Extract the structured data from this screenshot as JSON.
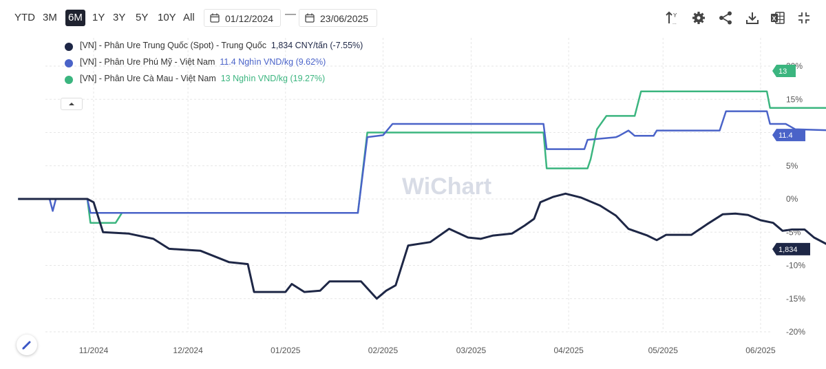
{
  "toolbar": {
    "ranges": [
      "YTD",
      "3M",
      "6M",
      "1Y",
      "3Y",
      "5Y",
      "10Y",
      "All"
    ],
    "active_range": "6M",
    "date_from": "01/12/2024",
    "date_to": "23/06/2025",
    "separator": "—",
    "icons": [
      "sort-icon",
      "gear-icon",
      "share-icon",
      "download-icon",
      "excel-icon",
      "collapse-icon"
    ]
  },
  "watermark": "WiChart",
  "colors": {
    "series1": "#1e2746",
    "series2": "#4a63c8",
    "series3": "#3bb57f",
    "grid": "#e6e6e6"
  },
  "chart_data": {
    "type": "line",
    "y_unit": "%",
    "ylim": [
      -20,
      20
    ],
    "y_ticks": [
      "20%",
      "15%",
      "10%",
      "5%",
      "0%",
      "-5%",
      "-10%",
      "-15%",
      "-20%"
    ],
    "x_ticks": [
      "11/2024",
      "12/2024",
      "01/2025",
      "02/2025",
      "03/2025",
      "04/2025",
      "05/2025",
      "06/2025"
    ],
    "series": [
      {
        "name": "[VN] - Phân Ure Trung Quốc (Spot) - Trung Quốc",
        "value_label": "1,834 CNY/tấn (-7.55%)",
        "end_badge": "1,834",
        "color": "#1e2746",
        "points": [
          [
            "2024-10-08",
            0
          ],
          [
            "2024-10-30",
            0
          ],
          [
            "2024-11-01",
            -0.5
          ],
          [
            "2024-11-04",
            -5
          ],
          [
            "2024-11-12",
            -5.2
          ],
          [
            "2024-11-20",
            -6
          ],
          [
            "2024-11-25",
            -7.5
          ],
          [
            "2024-12-05",
            -7.8
          ],
          [
            "2024-12-14",
            -9.5
          ],
          [
            "2024-12-20",
            -9.8
          ],
          [
            "2024-12-22",
            -14
          ],
          [
            "2025-01-01",
            -14
          ],
          [
            "2025-01-03",
            -12.8
          ],
          [
            "2025-01-07",
            -14
          ],
          [
            "2025-01-12",
            -13.8
          ],
          [
            "2025-01-15",
            -12.4
          ],
          [
            "2025-01-25",
            -12.4
          ],
          [
            "2025-01-30",
            -15
          ],
          [
            "2025-02-02",
            -13.8
          ],
          [
            "2025-02-05",
            -13
          ],
          [
            "2025-02-09",
            -7
          ],
          [
            "2025-02-16",
            -6.5
          ],
          [
            "2025-02-22",
            -4.5
          ],
          [
            "2025-02-28",
            -5.8
          ],
          [
            "2025-03-04",
            -6
          ],
          [
            "2025-03-08",
            -5.5
          ],
          [
            "2025-03-14",
            -5.2
          ],
          [
            "2025-03-18",
            -4
          ],
          [
            "2025-03-21",
            -3
          ],
          [
            "2025-03-23",
            -0.5
          ],
          [
            "2025-03-27",
            0.3
          ],
          [
            "2025-03-31",
            0.8
          ],
          [
            "2025-04-05",
            0.2
          ],
          [
            "2025-04-11",
            -1
          ],
          [
            "2025-04-16",
            -2.5
          ],
          [
            "2025-04-20",
            -4.5
          ],
          [
            "2025-04-26",
            -5.5
          ],
          [
            "2025-04-29",
            -6.2
          ],
          [
            "2025-05-02",
            -5.4
          ],
          [
            "2025-05-10",
            -5.4
          ],
          [
            "2025-05-15",
            -3.8
          ],
          [
            "2025-05-20",
            -2.3
          ],
          [
            "2025-05-24",
            -2.2
          ],
          [
            "2025-05-28",
            -2.4
          ],
          [
            "2025-06-01",
            -3.2
          ],
          [
            "2025-06-05",
            -3.6
          ],
          [
            "2025-06-08",
            -4.8
          ],
          [
            "2025-06-11",
            -4.6
          ],
          [
            "2025-06-15",
            -4.6
          ],
          [
            "2025-06-18",
            -5.8
          ],
          [
            "2025-06-22",
            -6.8
          ],
          [
            "2025-06-25",
            -8.5
          ],
          [
            "2025-06-29",
            -9.5
          ],
          [
            "2025-07-02",
            -9.3
          ],
          [
            "2025-07-05",
            -7.3
          ],
          [
            "2025-07-08",
            -7.7
          ],
          [
            "2025-07-11",
            -7.55
          ]
        ]
      },
      {
        "name": "[VN] - Phân Ure Phú Mỹ - Việt Nam",
        "value_label": "11.4 Nghìn VND/kg (9.62%)",
        "end_badge": "11.4",
        "color": "#4a63c8",
        "points": [
          [
            "2024-10-08",
            0
          ],
          [
            "2024-10-18",
            0
          ],
          [
            "2024-10-19",
            -1.8
          ],
          [
            "2024-10-20",
            0
          ],
          [
            "2024-10-30",
            0
          ],
          [
            "2024-10-31",
            -2.1
          ],
          [
            "2025-01-24",
            -2.1
          ],
          [
            "2025-01-27",
            9.3
          ],
          [
            "2025-02-01",
            9.6
          ],
          [
            "2025-02-04",
            11.3
          ],
          [
            "2025-03-24",
            11.3
          ],
          [
            "2025-03-25",
            7.5
          ],
          [
            "2025-04-06",
            7.5
          ],
          [
            "2025-04-07",
            8.9
          ],
          [
            "2025-04-16",
            9.3
          ],
          [
            "2025-04-17",
            9.5
          ],
          [
            "2025-04-20",
            10.3
          ],
          [
            "2025-04-22",
            9.5
          ],
          [
            "2025-04-28",
            9.5
          ],
          [
            "2025-04-29",
            10.3
          ],
          [
            "2025-05-19",
            10.3
          ],
          [
            "2025-05-21",
            13.2
          ],
          [
            "2025-06-03",
            13.2
          ],
          [
            "2025-06-04",
            11.3
          ],
          [
            "2025-06-09",
            11.3
          ],
          [
            "2025-06-12",
            10.5
          ],
          [
            "2025-06-25",
            10.3
          ],
          [
            "2025-06-27",
            9.5
          ],
          [
            "2025-07-11",
            9.62
          ]
        ]
      },
      {
        "name": "[VN] - Phân Ure Cà Mau - Việt Nam",
        "value_label": "13 Nghìn VND/kg (19.27%)",
        "end_badge": "13",
        "color": "#3bb57f",
        "points": [
          [
            "2024-10-08",
            0
          ],
          [
            "2024-10-30",
            0
          ],
          [
            "2024-10-31",
            -3.6
          ],
          [
            "2024-11-08",
            -3.6
          ],
          [
            "2024-11-10",
            -2.1
          ],
          [
            "2025-01-24",
            -2.1
          ],
          [
            "2025-01-27",
            10
          ],
          [
            "2025-03-24",
            10
          ],
          [
            "2025-03-25",
            4.6
          ],
          [
            "2025-04-07",
            4.6
          ],
          [
            "2025-04-08",
            6
          ],
          [
            "2025-04-10",
            10.5
          ],
          [
            "2025-04-13",
            12.5
          ],
          [
            "2025-04-22",
            12.5
          ],
          [
            "2025-04-24",
            16.2
          ],
          [
            "2025-06-03",
            16.2
          ],
          [
            "2025-06-04",
            13.7
          ],
          [
            "2025-06-27",
            13.7
          ],
          [
            "2025-06-28",
            11.8
          ],
          [
            "2025-07-07",
            11.8
          ],
          [
            "2025-07-08",
            14
          ],
          [
            "2025-07-11",
            19.27
          ]
        ]
      }
    ]
  }
}
